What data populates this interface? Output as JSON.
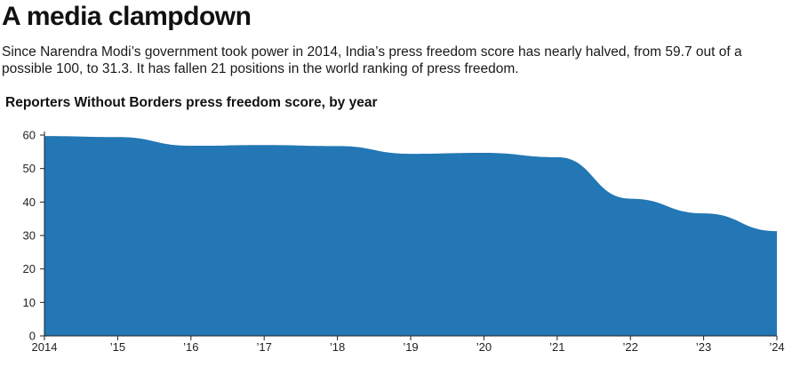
{
  "header": {
    "title": "A media clampdown",
    "description": "Since Narendra Modi’s government took power in 2014, India’s press freedom score has nearly halved, from 59.7 out of a possible 100, to 31.3. It has fallen 21 positions in the world ranking of press freedom."
  },
  "colors": {
    "area": "#2277b4",
    "axis": "#222222",
    "text": "#222222"
  },
  "chart_data": {
    "type": "area",
    "title": "Reporters Without Borders press freedom score, by year",
    "x": [
      2014,
      2015,
      2016,
      2017,
      2018,
      2019,
      2020,
      2021,
      2022,
      2023,
      2024
    ],
    "x_tick_labels": [
      "2014",
      "’15",
      "’16",
      "’17",
      "’18",
      "’19",
      "’20",
      "’21",
      "’22",
      "’23",
      "’24"
    ],
    "series": [
      {
        "values": [
          59.7,
          59.4,
          56.8,
          57.0,
          56.7,
          54.4,
          54.7,
          53.4,
          41.0,
          36.6,
          31.3
        ]
      }
    ],
    "y_ticks": [
      0,
      10,
      20,
      30,
      40,
      50,
      60
    ],
    "ylim": [
      0,
      60
    ],
    "xlabel": "",
    "ylabel": "",
    "grid": false,
    "legend": "none"
  }
}
